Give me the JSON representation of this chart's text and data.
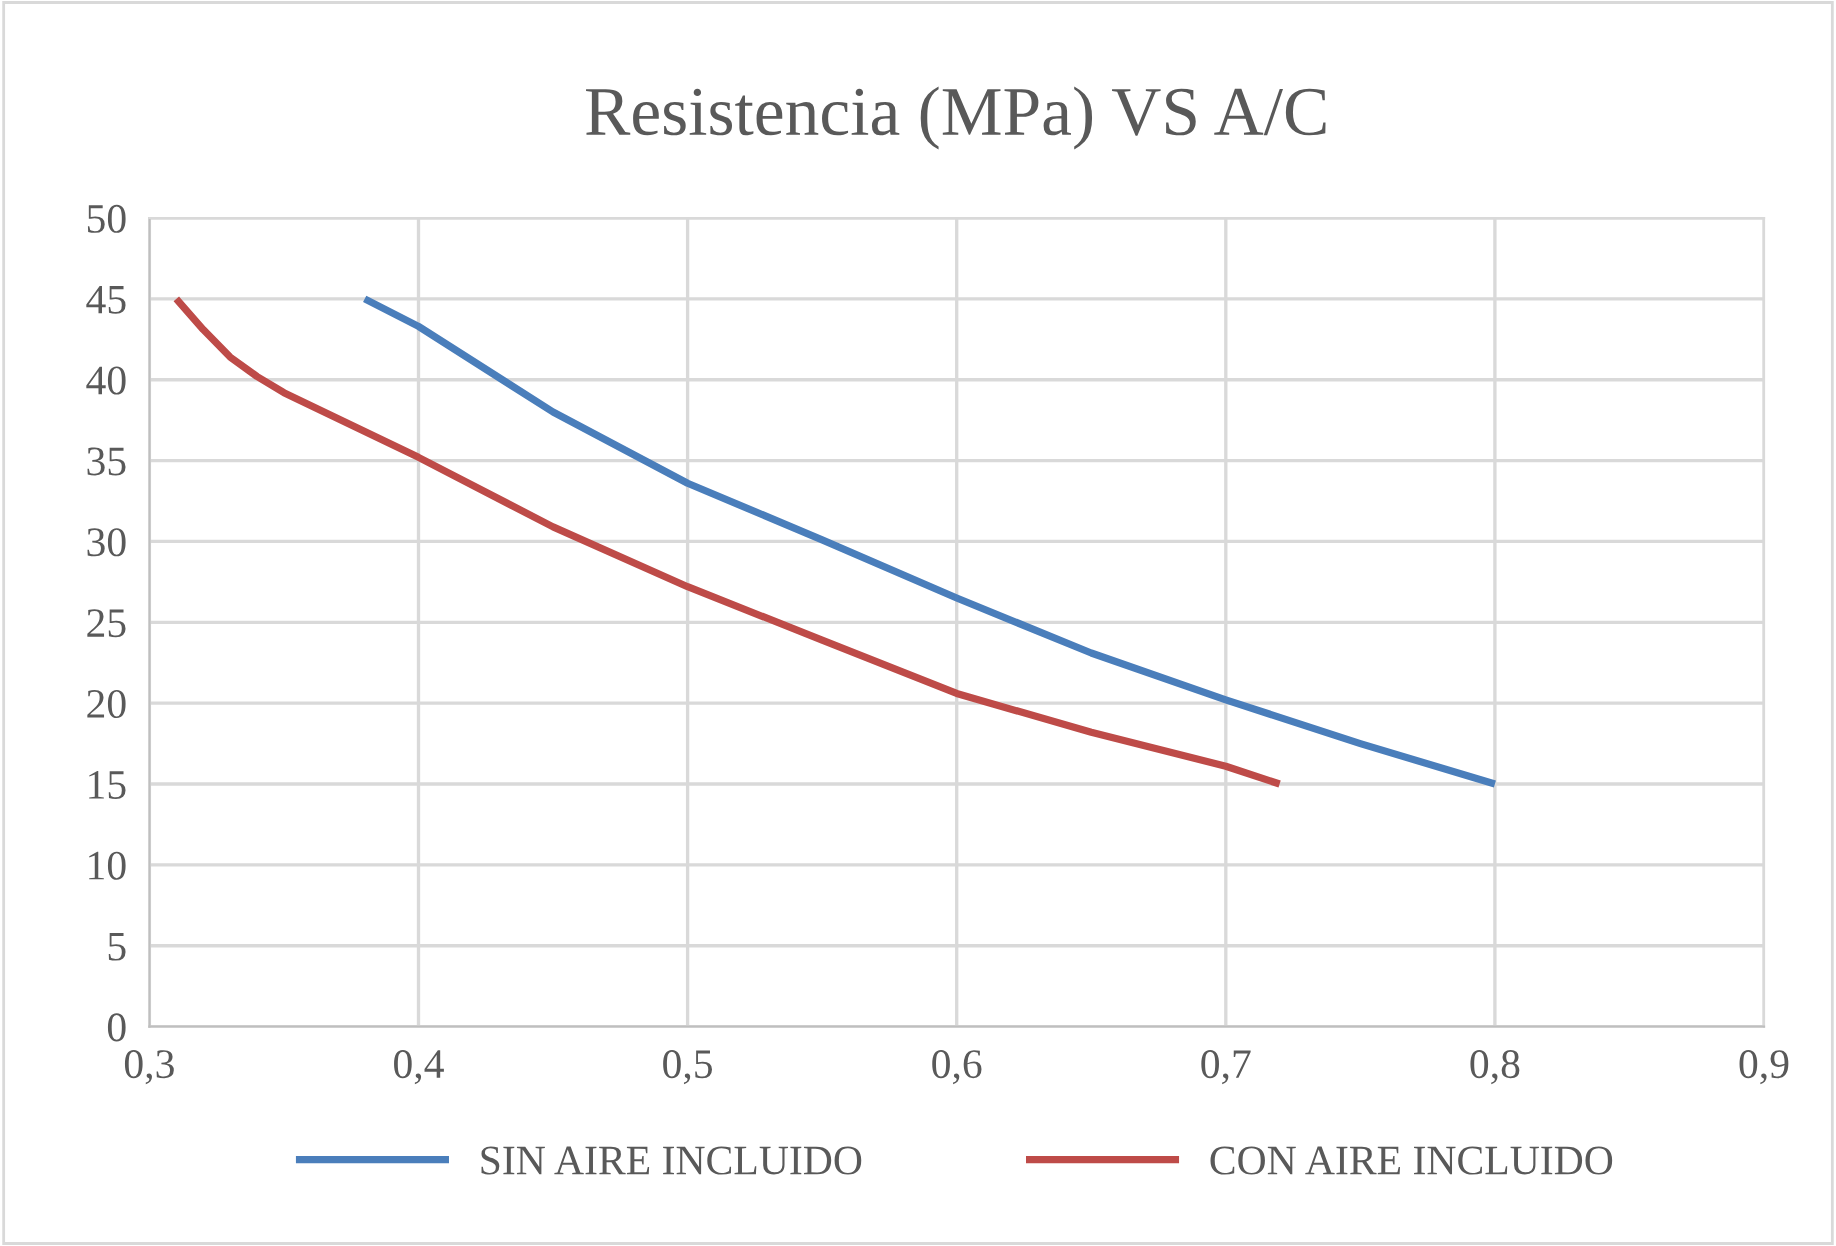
{
  "chart_data": {
    "type": "line",
    "title": "Resistencia (MPa) VS A/C",
    "series": [
      {
        "name": "SIN AIRE INCLUIDO",
        "color": "#4a7ebb",
        "x": [
          0.38,
          0.4,
          0.45,
          0.5,
          0.55,
          0.6,
          0.65,
          0.7,
          0.75,
          0.8
        ],
        "values": [
          45,
          43.3,
          38.0,
          33.6,
          30.1,
          26.5,
          23.1,
          20.2,
          17.5,
          15
        ]
      },
      {
        "name": "CON AIRE INCLUIDO",
        "color": "#be4b48",
        "x": [
          0.31,
          0.32,
          0.33,
          0.34,
          0.35,
          0.4,
          0.45,
          0.5,
          0.55,
          0.6,
          0.65,
          0.7,
          0.72
        ],
        "values": [
          45,
          43.1,
          41.4,
          40.2,
          39.2,
          35.2,
          30.9,
          27.2,
          23.9,
          20.6,
          18.2,
          16.1,
          15
        ]
      }
    ],
    "xlim": [
      0.3,
      0.9
    ],
    "xticks": [
      {
        "value": 0.3,
        "label": "0,3"
      },
      {
        "value": 0.4,
        "label": "0,4"
      },
      {
        "value": 0.5,
        "label": "0,5"
      },
      {
        "value": 0.6,
        "label": "0,6"
      },
      {
        "value": 0.7,
        "label": "0,7"
      },
      {
        "value": 0.8,
        "label": "0,8"
      },
      {
        "value": 0.9,
        "label": "0,9"
      }
    ],
    "ylim": [
      0,
      50
    ],
    "yticks": [
      0,
      5,
      10,
      15,
      20,
      25,
      30,
      35,
      40,
      45,
      50
    ],
    "grid": true,
    "legend": "bottom",
    "marker": "none",
    "line_style": "solid"
  }
}
